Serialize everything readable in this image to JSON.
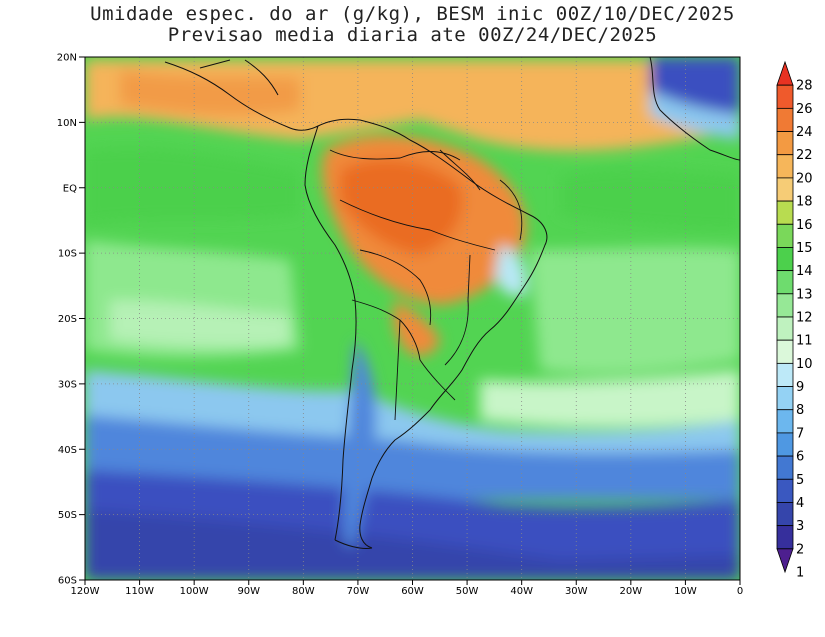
{
  "title_line1": "Umidade espec. do ar (g/kg), BESM inic 00Z/10/DEC/2025",
  "title_line2": "Previsao media diaria ate 00Z/24/DEC/2025",
  "map": {
    "lat_ticks": [
      "20N",
      "10N",
      "EQ",
      "10S",
      "20S",
      "30S",
      "40S",
      "50S",
      "60S"
    ],
    "lon_ticks": [
      "120W",
      "110W",
      "100W",
      "90W",
      "80W",
      "70W",
      "60W",
      "50W",
      "40W",
      "30W",
      "20W",
      "10W",
      "0"
    ],
    "colors": {
      "deep_blue": "#3b4fc0",
      "blue": "#4f86dc",
      "light_blue": "#8cc8ef",
      "cyan": "#b8e8f5",
      "pale_green": "#c8f5c8",
      "light_green": "#8ee88e",
      "green": "#52d452",
      "lime": "#b8dc50",
      "light_orange": "#f5b45a",
      "orange": "#f08a3a",
      "dark_orange": "#e8641e"
    }
  },
  "colorbar": {
    "levels": [
      "28",
      "26",
      "24",
      "22",
      "20",
      "18",
      "16",
      "15",
      "14",
      "13",
      "12",
      "11",
      "10",
      "9",
      "8",
      "7",
      "6",
      "5",
      "4",
      "3",
      "2",
      "1"
    ],
    "colors": [
      "#e83222",
      "#ef5a2c",
      "#f07a34",
      "#f39a42",
      "#f6b65a",
      "#f6cc76",
      "#b8dc50",
      "#7ad85a",
      "#4cd04c",
      "#6edc6e",
      "#96e896",
      "#bff2bf",
      "#dbf8da",
      "#bde9f8",
      "#94d2f4",
      "#6cb7ee",
      "#4f98e2",
      "#4278d2",
      "#3a58c0",
      "#3545ab",
      "#362f9c",
      "#4d1f8f"
    ]
  }
}
